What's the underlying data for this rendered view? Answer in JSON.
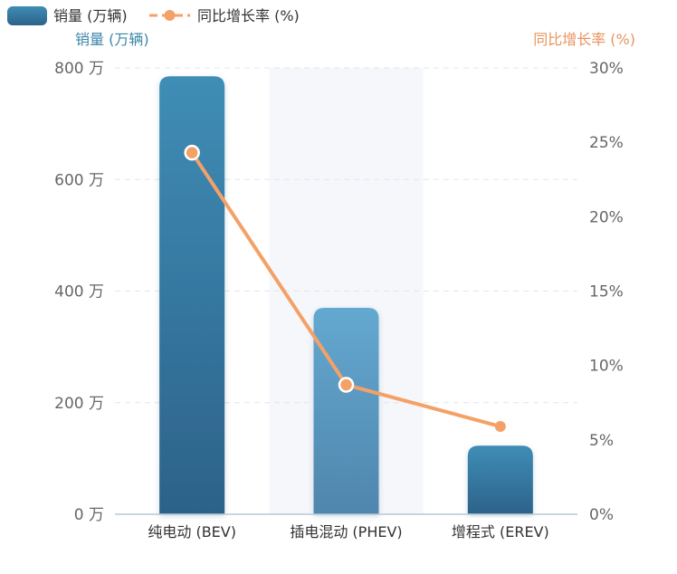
{
  "chart_data": {
    "type": "bar",
    "categories": [
      "纯电动 (BEV)",
      "插电混动 (PHEV)",
      "增程式 (EREV)"
    ],
    "series": [
      {
        "name": "销量 (万辆)",
        "type": "bar",
        "axis": "left",
        "values": [
          785,
          370,
          123
        ]
      },
      {
        "name": "同比增长率 (%)",
        "type": "line",
        "axis": "right",
        "values": [
          24.3,
          8.7,
          5.9
        ]
      }
    ],
    "left_axis": {
      "label": "销量 (万辆)",
      "ylim": [
        0,
        800
      ],
      "ticks": [
        0,
        200,
        400,
        600,
        800
      ],
      "tick_labels": [
        "0 万",
        "200 万",
        "400 万",
        "600 万",
        "800 万"
      ]
    },
    "right_axis": {
      "label": "同比增长率 (%)",
      "ylim": [
        0,
        30
      ],
      "ticks": [
        0,
        5,
        10,
        15,
        20,
        25,
        30
      ],
      "tick_labels": [
        "0%",
        "5%",
        "10%",
        "15%",
        "20%",
        "25%",
        "30%"
      ]
    },
    "highlighted_category": "插电混动 (PHEV)",
    "grid": true,
    "legend_position": "top-left",
    "colors": {
      "bar_top": "#3f8db6",
      "bar_bottom": "#2c6289",
      "bar_highlight_top": "#64a8d0",
      "bar_highlight_bottom": "#4f86ad",
      "line": "#f4a167",
      "left_axis_label": "#3d86a8",
      "right_axis_label": "#e8935e",
      "tick_label": "#666666",
      "category_label": "#333333",
      "grid": "#e0e6ef",
      "highlight_band": "#f5f7fb",
      "axis_line": "#b7c9d6"
    }
  }
}
